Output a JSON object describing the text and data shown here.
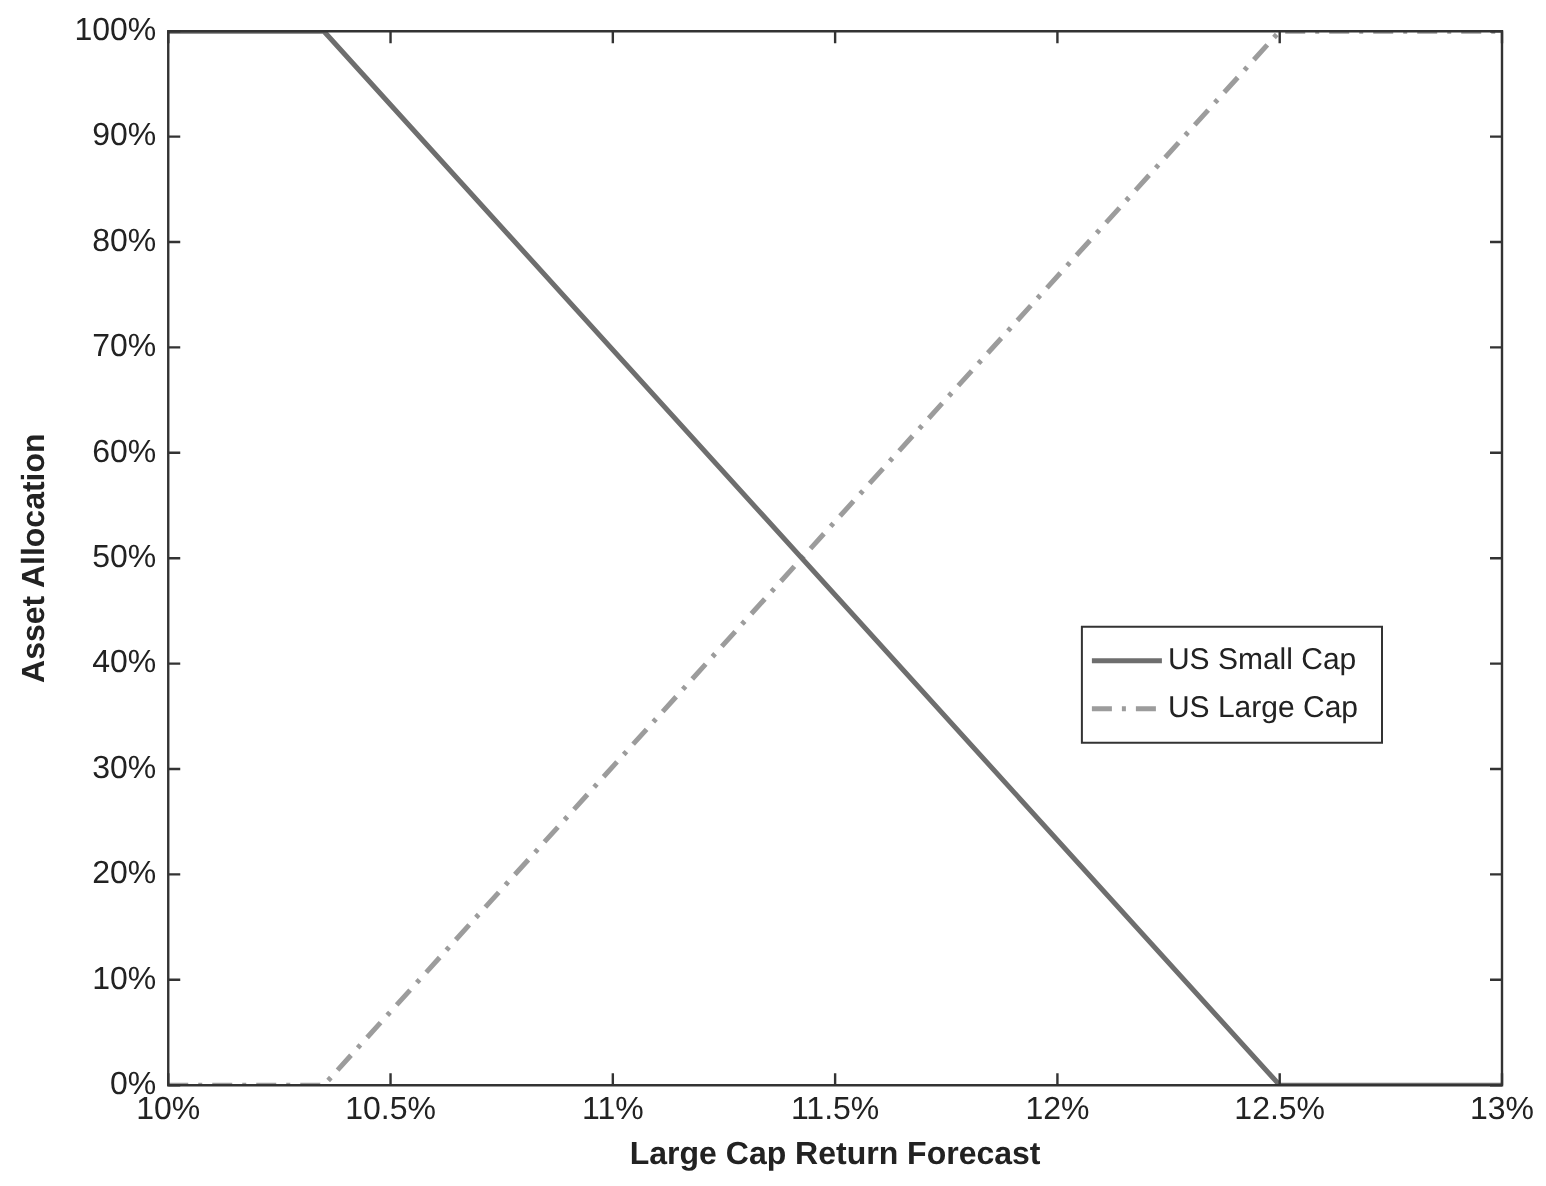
{
  "chart_data": {
    "type": "line",
    "xlabel": "Large Cap Return Forecast",
    "ylabel": "Asset Allocation",
    "xlim": [
      10,
      13
    ],
    "xticks": [
      {
        "value": 10,
        "label": "10%"
      },
      {
        "value": 10.5,
        "label": "10.5%"
      },
      {
        "value": 11,
        "label": "11%"
      },
      {
        "value": 11.5,
        "label": "11.5%"
      },
      {
        "value": 12,
        "label": "12%"
      },
      {
        "value": 12.5,
        "label": "12.5%"
      },
      {
        "value": 13,
        "label": "13%"
      }
    ],
    "ylim": [
      0,
      100
    ],
    "yticks": [
      {
        "value": 0,
        "label": "0%"
      },
      {
        "value": 10,
        "label": "10%"
      },
      {
        "value": 20,
        "label": "20%"
      },
      {
        "value": 30,
        "label": "30%"
      },
      {
        "value": 40,
        "label": "40%"
      },
      {
        "value": 50,
        "label": "50%"
      },
      {
        "value": 60,
        "label": "60%"
      },
      {
        "value": 70,
        "label": "70%"
      },
      {
        "value": 80,
        "label": "80%"
      },
      {
        "value": 90,
        "label": "90%"
      },
      {
        "value": 100,
        "label": "100%"
      }
    ],
    "x": [
      10,
      10.35,
      12.5,
      13
    ],
    "series": [
      {
        "name": "US Small Cap",
        "color": "#6e6e6e",
        "values": [
          100,
          100,
          0,
          0
        ],
        "line_style": "solid"
      },
      {
        "name": "US Large Cap",
        "color": "#9c9c9c",
        "values": [
          0,
          0,
          100,
          100
        ],
        "line_style": "dashdot"
      }
    ],
    "grid": false,
    "legend": "right",
    "marker": "none"
  }
}
